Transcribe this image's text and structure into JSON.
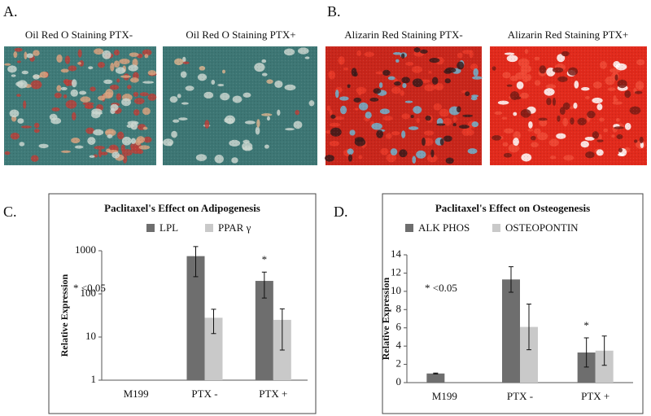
{
  "panel_labels": [
    "A.",
    "B.",
    "C.",
    "D."
  ],
  "images": [
    {
      "caption": "Oil Red O Staining PTX-"
    },
    {
      "caption": "Oil Red O Staining PTX+"
    },
    {
      "caption": "Alizarin Red Staining PTX-"
    },
    {
      "caption": "Alizarin Red Staining PTX+"
    }
  ],
  "chart_data": [
    {
      "type": "bar",
      "title": "Paclitaxel's Effect on Adipogenesis",
      "y_label": "Relative Expression",
      "categories": [
        "M199",
        "PTX -",
        "PTX +"
      ],
      "series": [
        {
          "name": "LPL",
          "color": "#6e6e6e",
          "values": [
            1,
            750,
            200
          ],
          "errors": [
            0,
            500,
            120
          ]
        },
        {
          "name": "PPAR γ",
          "color": "#c9c9c9",
          "values": [
            1,
            28,
            25
          ],
          "errors": [
            0,
            16,
            20
          ]
        }
      ],
      "log_scale": true,
      "ylim": [
        1,
        1000
      ],
      "yticks": [
        1,
        10,
        100,
        1000
      ],
      "annotation": "* <0.05",
      "significance_marker": "*"
    },
    {
      "type": "bar",
      "title": "Paclitaxel's Effect on Osteogenesis",
      "y_label": "Relative Expression",
      "categories": [
        "M199",
        "PTX -",
        "PTX +"
      ],
      "series": [
        {
          "name": "ALK PHOS",
          "color": "#6e6e6e",
          "values": [
            1.0,
            11.3,
            3.3
          ],
          "errors": [
            0.05,
            1.4,
            1.6
          ]
        },
        {
          "name": "OSTEOPONTIN",
          "color": "#c9c9c9",
          "values": [
            null,
            6.1,
            3.5
          ],
          "errors": [
            null,
            2.5,
            1.6
          ]
        }
      ],
      "log_scale": false,
      "ylim": [
        0,
        14
      ],
      "yticks": [
        0,
        2,
        4,
        6,
        8,
        10,
        12,
        14
      ],
      "annotation": "* <0.05",
      "significance_marker": "*"
    }
  ]
}
